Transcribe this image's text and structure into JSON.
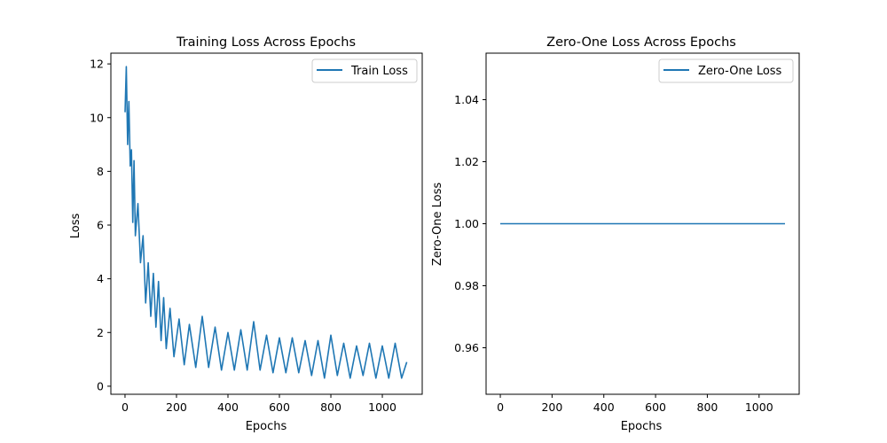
{
  "chart_data": [
    {
      "type": "line",
      "title": "Training Loss Across Epochs",
      "xlabel": "Epochs",
      "ylabel": "Loss",
      "xlim": [
        -55,
        1155
      ],
      "ylim": [
        -0.3,
        12.4
      ],
      "xticks": [
        0,
        200,
        400,
        600,
        800,
        1000
      ],
      "yticks": [
        0,
        2,
        4,
        6,
        8,
        10,
        12
      ],
      "grid": false,
      "legend_position": "top-right",
      "series": [
        {
          "name": "Train Loss",
          "color": "#1f77b4",
          "x": [
            0,
            5,
            10,
            15,
            20,
            25,
            30,
            35,
            40,
            50,
            60,
            70,
            80,
            90,
            100,
            110,
            120,
            130,
            140,
            150,
            160,
            175,
            190,
            210,
            230,
            250,
            275,
            300,
            325,
            350,
            375,
            400,
            425,
            450,
            475,
            500,
            525,
            550,
            575,
            600,
            625,
            650,
            675,
            700,
            725,
            750,
            775,
            800,
            825,
            850,
            875,
            900,
            925,
            950,
            975,
            1000,
            1025,
            1050,
            1075,
            1095
          ],
          "values": [
            10.2,
            11.9,
            9.0,
            10.6,
            8.2,
            8.8,
            6.1,
            8.4,
            5.6,
            6.8,
            4.6,
            5.6,
            3.1,
            4.6,
            2.6,
            4.2,
            2.2,
            3.9,
            1.7,
            3.3,
            1.4,
            2.9,
            1.1,
            2.5,
            0.8,
            2.3,
            0.7,
            2.6,
            0.7,
            2.2,
            0.6,
            2.0,
            0.6,
            2.1,
            0.6,
            2.4,
            0.6,
            1.9,
            0.5,
            1.8,
            0.5,
            1.8,
            0.5,
            1.7,
            0.4,
            1.7,
            0.3,
            1.9,
            0.4,
            1.6,
            0.3,
            1.5,
            0.4,
            1.6,
            0.3,
            1.5,
            0.3,
            1.6,
            0.3,
            0.9
          ]
        }
      ]
    },
    {
      "type": "line",
      "title": "Zero-One Loss Across Epochs",
      "xlabel": "Epochs",
      "ylabel": "Zero-One Loss",
      "xlim": [
        -55,
        1155
      ],
      "ylim": [
        0.945,
        1.055
      ],
      "xticks": [
        0,
        200,
        400,
        600,
        800,
        1000
      ],
      "yticks": [
        0.96,
        0.98,
        1.0,
        1.02,
        1.04
      ],
      "ytick_labels": [
        "0.96",
        "0.98",
        "1.00",
        "1.02",
        "1.04"
      ],
      "grid": false,
      "legend_position": "top-right",
      "series": [
        {
          "name": "Zero-One Loss",
          "color": "#1f77b4",
          "x": [
            0,
            1100
          ],
          "values": [
            1.0,
            1.0
          ]
        }
      ]
    }
  ]
}
